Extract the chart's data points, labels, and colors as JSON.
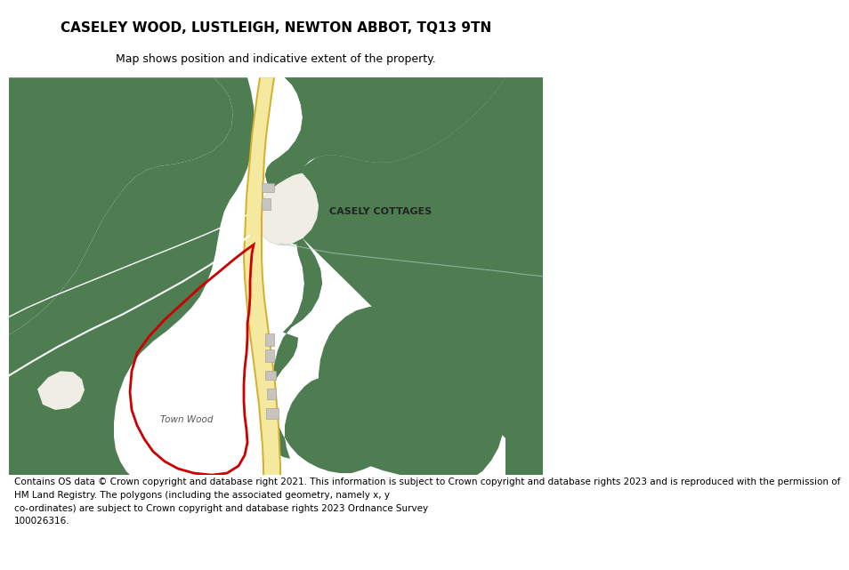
{
  "title_line1": "CASELEY WOOD, LUSTLEIGH, NEWTON ABBOT, TQ13 9TN",
  "title_line2": "Map shows position and indicative extent of the property.",
  "footer": "Contains OS data © Crown copyright and database right 2021. This information is subject to Crown copyright and database rights 2023 and is reproduced with the permission of\nHM Land Registry. The polygons (including the associated geometry, namely x, y\nco-ordinates) are subject to Crown copyright and database rights 2023 Ordnance Survey\n100026316.",
  "bg_color": "#ffffff",
  "map_bg": "#f0ede5",
  "green_color": "#4e7d52",
  "road_fill": "#f5e9a0",
  "road_edge": "#d4b030",
  "red_color": "#cc0000",
  "building_color": "#c8c4be",
  "building_edge": "#a8a4a0",
  "path_color": "#ffffff",
  "label_cottages": "CASELY COTTAGES",
  "label_wood": "Town Wood",
  "title_fontsize": 11,
  "subtitle_fontsize": 9,
  "footer_fontsize": 7.5
}
